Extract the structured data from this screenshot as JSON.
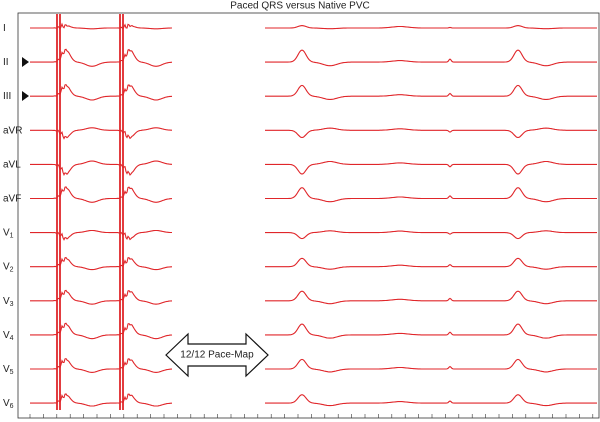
{
  "title": "Paced QRS versus Native PVC",
  "leads": [
    {
      "name": "I"
    },
    {
      "name": "II"
    },
    {
      "name": "III"
    },
    {
      "name": "aVR"
    },
    {
      "name": "aVL"
    },
    {
      "name": "aVF"
    },
    {
      "name": "V",
      "subscript": "1"
    },
    {
      "name": "V",
      "subscript": "2"
    },
    {
      "name": "V",
      "subscript": "3"
    },
    {
      "name": "V",
      "subscript": "4"
    },
    {
      "name": "V",
      "subscript": "5"
    },
    {
      "name": "V",
      "subscript": "6"
    }
  ],
  "arrow_label": "12/12 Pace-Map"
}
